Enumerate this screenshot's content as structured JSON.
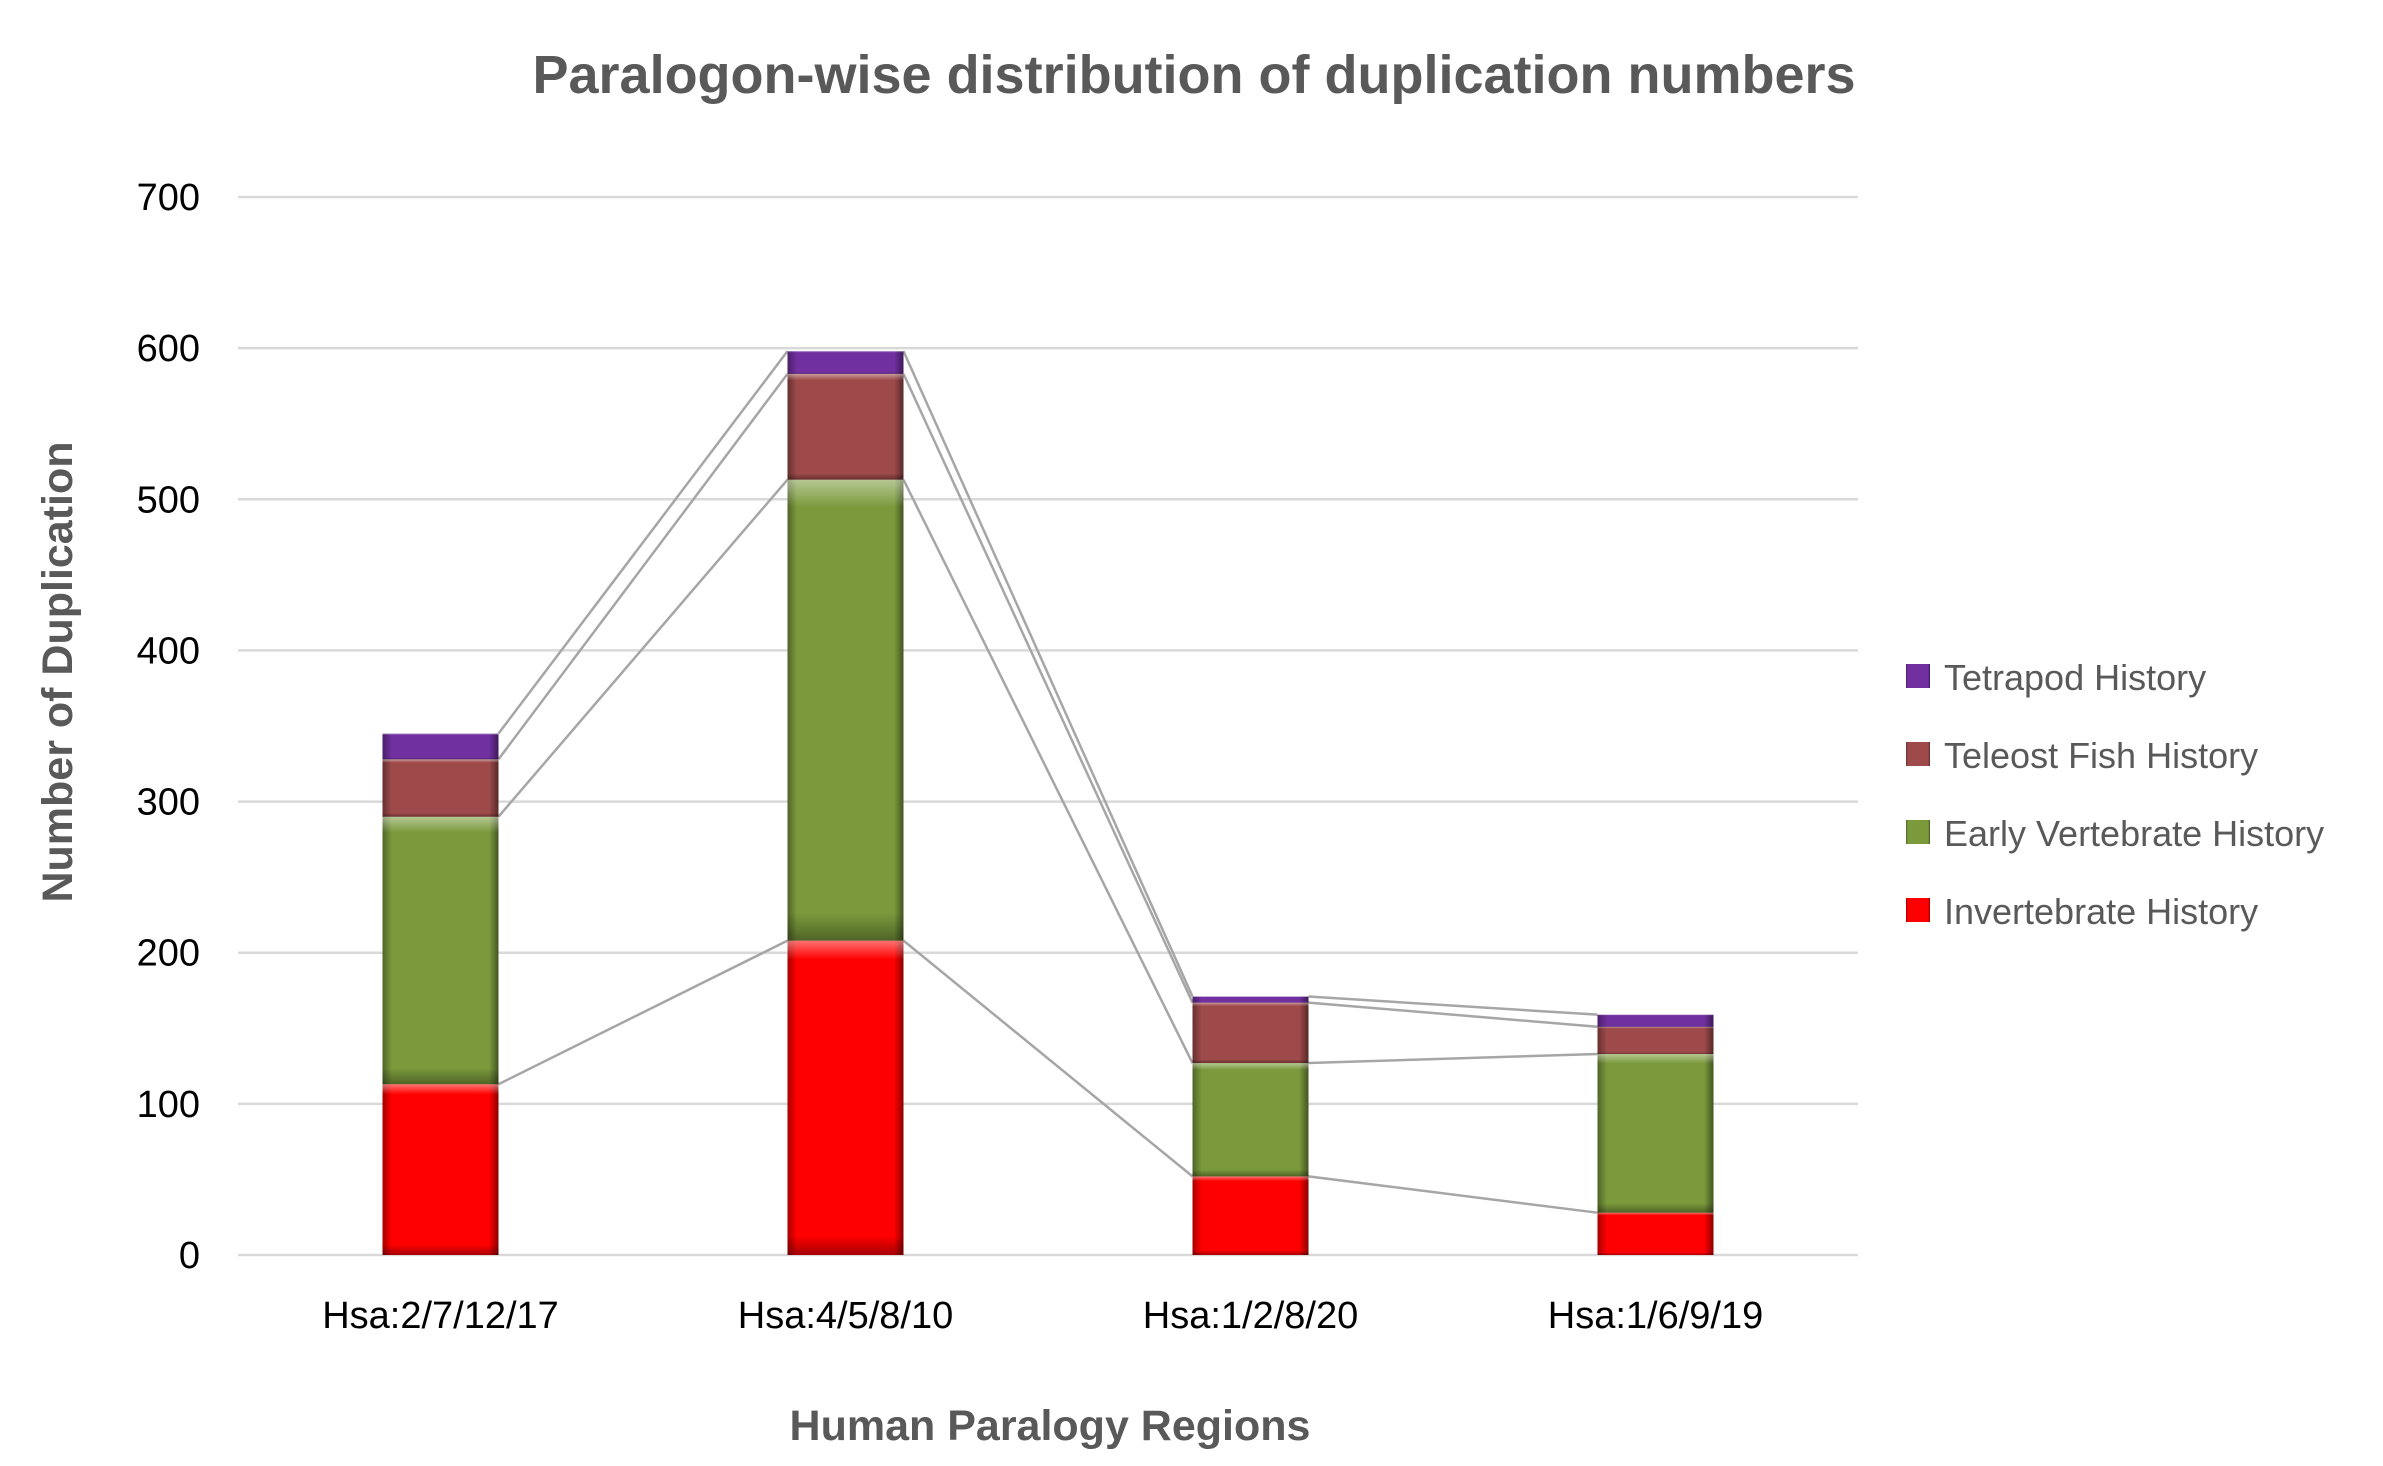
{
  "chart_data": {
    "type": "bar",
    "stacked": true,
    "title": "Paralogon-wise distribution of duplication numbers",
    "xlabel": "Human Paralogy Regions",
    "ylabel": "Number of Duplication",
    "categories": [
      "Hsa:2/7/12/17",
      "Hsa:4/5/8/10",
      "Hsa:1/2/8/20",
      "Hsa:1/6/9/19"
    ],
    "ylim": [
      0,
      700
    ],
    "yticks": [
      0,
      100,
      200,
      300,
      400,
      500,
      600,
      700
    ],
    "grid": true,
    "series_lines": true,
    "legend_position": "right",
    "series": [
      {
        "name": "Invertebrate History",
        "values": [
          113,
          208,
          52,
          28
        ],
        "color": "#ff0000"
      },
      {
        "name": "Early Vertebrate History",
        "values": [
          177,
          305,
          75,
          105
        ],
        "color": "#7a9a3c"
      },
      {
        "name": "Teleost Fish History",
        "values": [
          38,
          70,
          40,
          18
        ],
        "color": "#9e4a4a"
      },
      {
        "name": "Tetrapod History",
        "values": [
          17,
          15,
          4,
          8
        ],
        "color": "#7030a0"
      }
    ]
  }
}
